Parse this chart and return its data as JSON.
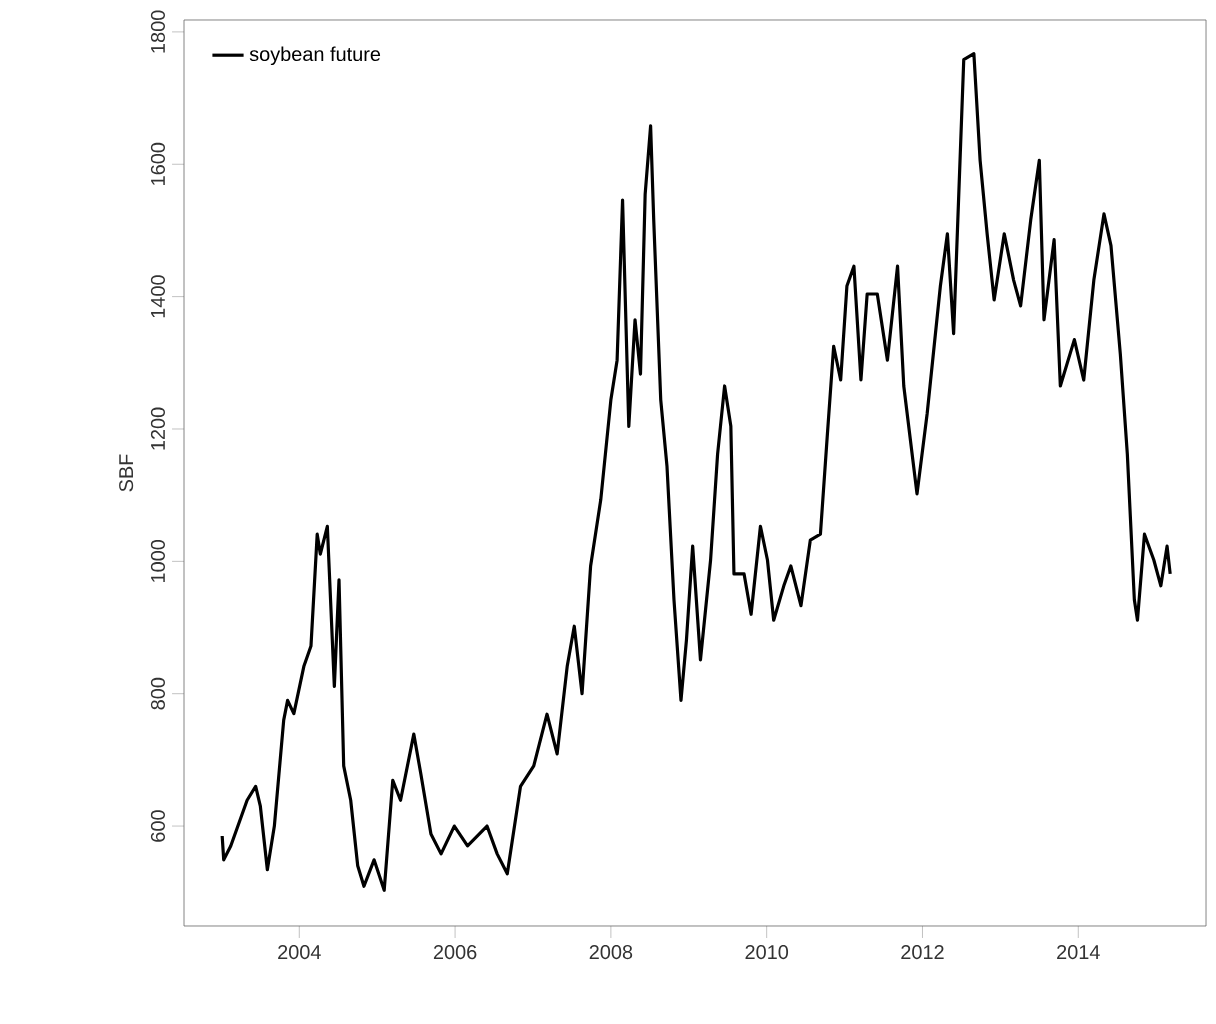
{
  "chart_data": {
    "type": "line",
    "ylabel": "SBF",
    "x": [
      2003.01,
      2003.03,
      2003.12,
      2003.33,
      2003.44,
      2003.5,
      2003.59,
      2003.68,
      2003.8,
      2003.85,
      2003.93,
      2004.06,
      2004.15,
      2004.23,
      2004.27,
      2004.36,
      2004.45,
      2004.51,
      2004.57,
      2004.66,
      2004.75,
      2004.83,
      2004.96,
      2005.09,
      2005.2,
      2005.3,
      2005.47,
      2005.56,
      2005.69,
      2005.82,
      2005.99,
      2006.16,
      2006.41,
      2006.54,
      2006.67,
      2006.84,
      2007.01,
      2007.18,
      2007.31,
      2007.44,
      2007.53,
      2007.63,
      2007.74,
      2007.87,
      2008.0,
      2008.08,
      2008.15,
      2008.23,
      2008.31,
      2008.38,
      2008.44,
      2008.51,
      2008.55,
      2008.64,
      2008.72,
      2008.81,
      2008.9,
      2008.97,
      2009.05,
      2009.15,
      2009.28,
      2009.37,
      2009.46,
      2009.54,
      2009.58,
      2009.71,
      2009.8,
      2009.92,
      2010.01,
      2010.09,
      2010.22,
      2010.31,
      2010.44,
      2010.56,
      2010.69,
      2010.78,
      2010.86,
      2010.95,
      2011.03,
      2011.12,
      2011.21,
      2011.29,
      2011.42,
      2011.55,
      2011.68,
      2011.76,
      2011.93,
      2012.06,
      2012.23,
      2012.32,
      2012.4,
      2012.53,
      2012.66,
      2012.74,
      2012.83,
      2012.92,
      2013.05,
      2013.17,
      2013.26,
      2013.39,
      2013.5,
      2013.56,
      2013.69,
      2013.77,
      2013.95,
      2014.07,
      2014.2,
      2014.33,
      2014.42,
      2014.54,
      2014.63,
      2014.72,
      2014.76,
      2014.85,
      2014.97,
      2015.06,
      2015.14,
      2015.18
    ],
    "series": [
      {
        "name": "soybean future",
        "color": "#000000",
        "values": [
          585,
          549,
          570,
          639,
          660,
          630,
          534,
          600,
          760,
          790,
          770,
          842,
          872,
          1041,
          1011,
          1053,
          811,
          972,
          691,
          639,
          540,
          509,
          549,
          503,
          669,
          639,
          739,
          679,
          588,
          558,
          600,
          570,
          600,
          558,
          528,
          660,
          691,
          769,
          709,
          842,
          902,
          800,
          993,
          1093,
          1244,
          1304,
          1546,
          1204,
          1365,
          1283,
          1555,
          1658,
          1516,
          1244,
          1144,
          942,
          790,
          881,
          1023,
          851,
          1002,
          1162,
          1265,
          1204,
          981,
          981,
          920,
          1053,
          1002,
          911,
          963,
          993,
          933,
          1032,
          1041,
          1193,
          1325,
          1274,
          1416,
          1446,
          1274,
          1404,
          1404,
          1304,
          1446,
          1265,
          1102,
          1223,
          1416,
          1495,
          1344,
          1758,
          1767,
          1606,
          1495,
          1395,
          1495,
          1425,
          1386,
          1516,
          1606,
          1365,
          1486,
          1265,
          1335,
          1274,
          1425,
          1525,
          1477,
          1313,
          1162,
          942,
          911,
          1041,
          1002,
          963,
          1023,
          981
        ]
      }
    ],
    "xlim": [
      2002.52,
      2015.64
    ],
    "ylim": [
      449,
      1818
    ],
    "xticks": [
      2004,
      2006,
      2008,
      2010,
      2012,
      2014
    ],
    "yticks": [
      600,
      800,
      1000,
      1200,
      1400,
      1600,
      1800
    ],
    "legend": "top left",
    "line_style": "solid",
    "marker": "none",
    "grid": false
  }
}
